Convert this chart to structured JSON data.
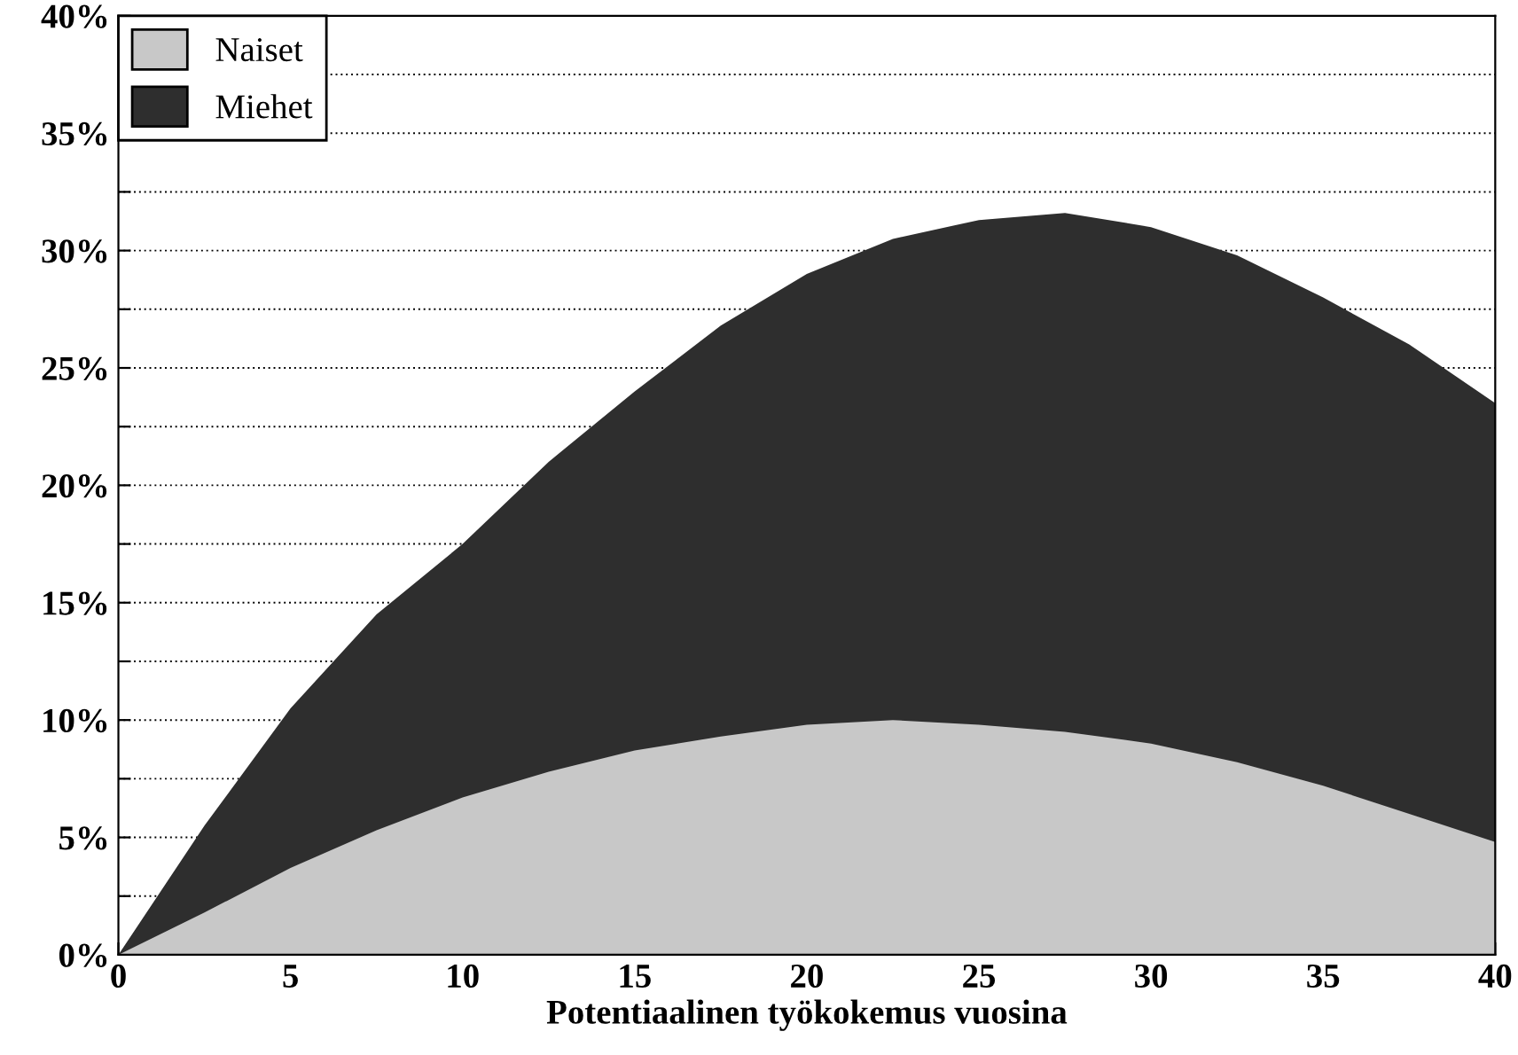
{
  "chart_data": {
    "type": "area",
    "xlabel": "Potentiaalinen työkokemus vuosina",
    "x": [
      0,
      2.5,
      5,
      7.5,
      10,
      12.5,
      15,
      17.5,
      20,
      22.5,
      25,
      27.5,
      30,
      32.5,
      35,
      37.5,
      40
    ],
    "series": [
      {
        "name": "Miehet",
        "color": "#2e2e2e",
        "values": [
          0,
          5.5,
          10.5,
          14.5,
          17.5,
          21,
          24,
          26.8,
          29,
          30.5,
          31.3,
          31.6,
          31,
          29.8,
          28,
          26,
          23.5
        ]
      },
      {
        "name": "Naiset",
        "color": "#c8c8c8",
        "values": [
          0,
          1.8,
          3.7,
          5.3,
          6.7,
          7.8,
          8.7,
          9.3,
          9.8,
          10,
          9.8,
          9.5,
          9,
          8.2,
          7.2,
          6,
          4.8
        ]
      }
    ],
    "xlim": [
      0,
      40
    ],
    "xticks": [
      0,
      5,
      10,
      15,
      20,
      25,
      30,
      35,
      40
    ],
    "ylim": [
      0,
      40
    ],
    "yticks": [
      {
        "value": 0,
        "label": "0%"
      },
      {
        "value": 2.5,
        "label": null
      },
      {
        "value": 5,
        "label": "5%"
      },
      {
        "value": 7.5,
        "label": null
      },
      {
        "value": 10,
        "label": "10%"
      },
      {
        "value": 12.5,
        "label": null
      },
      {
        "value": 15,
        "label": "15%"
      },
      {
        "value": 17.5,
        "label": null
      },
      {
        "value": 20,
        "label": "20%"
      },
      {
        "value": 22.5,
        "label": null
      },
      {
        "value": 25,
        "label": "25%"
      },
      {
        "value": 27.5,
        "label": null
      },
      {
        "value": 30,
        "label": "30%"
      },
      {
        "value": 32.5,
        "label": null
      },
      {
        "value": 35,
        "label": "35%"
      },
      {
        "value": 37.5,
        "label": null
      },
      {
        "value": 40,
        "label": "40%"
      }
    ],
    "grid": "y",
    "legend": "top left"
  }
}
